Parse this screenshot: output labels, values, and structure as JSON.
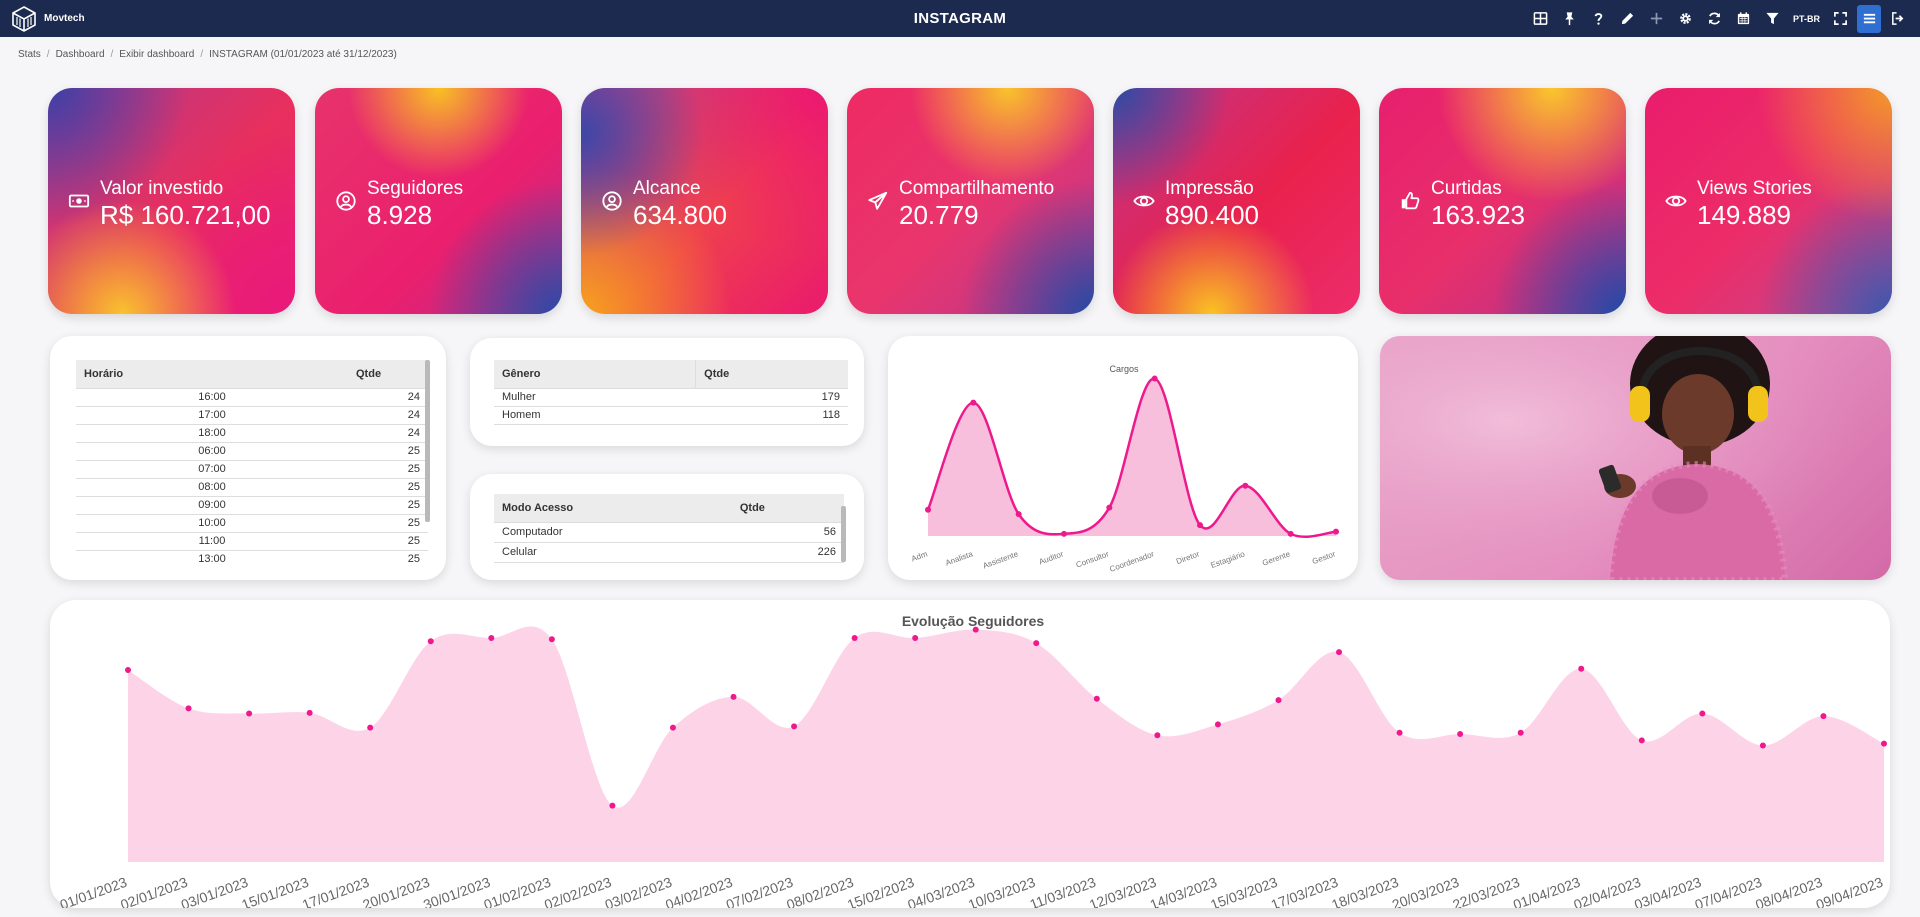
{
  "app": {
    "brand": "Movtech",
    "title": "INSTAGRAM",
    "lang": "PT-BR"
  },
  "toolbar_icons": [
    "grid-icon",
    "pin-icon",
    "help-icon",
    "pencil-icon",
    "plus-icon",
    "gear-icon",
    "refresh-icon",
    "calendar-icon",
    "filter-icon",
    "fullscreen-icon",
    "menu-icon",
    "logout-icon"
  ],
  "breadcrumb": [
    "Stats",
    "Dashboard",
    "Exibir dashboard",
    "INSTAGRAM (01/01/2023 até 31/12/2023)"
  ],
  "kpis": [
    {
      "label": "Valor investido",
      "value": "R$ 160.721,00",
      "icon": "money-icon"
    },
    {
      "label": "Seguidores",
      "value": "8.928",
      "icon": "user-circle-icon"
    },
    {
      "label": "Alcance",
      "value": "634.800",
      "icon": "user-circle-icon"
    },
    {
      "label": "Compartilhamento",
      "value": "20.779",
      "icon": "paper-plane-icon"
    },
    {
      "label": "Impressão",
      "value": "890.400",
      "icon": "eye-icon"
    },
    {
      "label": "Curtidas",
      "value": "163.923",
      "icon": "thumbs-up-icon"
    },
    {
      "label": "Views Stories",
      "value": "149.889",
      "icon": "eye-icon"
    }
  ],
  "horario_table": {
    "headers": [
      "Horário",
      "Qtde"
    ],
    "rows": [
      [
        "16:00",
        "24"
      ],
      [
        "17:00",
        "24"
      ],
      [
        "18:00",
        "24"
      ],
      [
        "06:00",
        "25"
      ],
      [
        "07:00",
        "25"
      ],
      [
        "08:00",
        "25"
      ],
      [
        "09:00",
        "25"
      ],
      [
        "10:00",
        "25"
      ],
      [
        "11:00",
        "25"
      ],
      [
        "13:00",
        "25"
      ]
    ]
  },
  "genero_table": {
    "headers": [
      "Gênero",
      "Qtde"
    ],
    "rows": [
      [
        "Mulher",
        "179"
      ],
      [
        "Homem",
        "118"
      ]
    ]
  },
  "acesso_table": {
    "headers": [
      "Modo Acesso",
      "Qtde"
    ],
    "rows": [
      [
        "Computador",
        "56"
      ],
      [
        "Celular",
        "226"
      ]
    ]
  },
  "colors": {
    "topbar": "#1b2a4e",
    "accent": "#e8198b",
    "area_fill": "#fbd3e8"
  },
  "chart_data": [
    {
      "type": "area",
      "title": "Cargos",
      "categories": [
        "Adm",
        "Analista",
        "Assistente",
        "Auditor",
        "Consultor",
        "Coordenador",
        "Diretor",
        "Estagiário",
        "Gerente",
        "Gestor"
      ],
      "values": [
        12,
        61,
        10,
        1,
        13,
        72,
        5,
        23,
        1,
        2
      ],
      "ylim": [
        0,
        75
      ],
      "grid": false,
      "legend": "none"
    },
    {
      "type": "area",
      "title": "Evolução Seguidores",
      "categories": [
        "01/01/2023",
        "02/01/2023",
        "03/01/2023",
        "15/01/2023",
        "17/01/2023",
        "20/01/2023",
        "30/01/2023",
        "01/02/2023",
        "02/02/2023",
        "03/02/2023",
        "04/02/2023",
        "07/02/2023",
        "08/02/2023",
        "15/02/2023",
        "04/03/2023",
        "10/03/2023",
        "11/03/2023",
        "12/03/2023",
        "14/03/2023",
        "15/03/2023",
        "17/03/2023",
        "18/03/2023",
        "20/03/2023",
        "22/03/2023",
        "01/04/2023",
        "02/04/2023",
        "03/04/2023",
        "07/04/2023",
        "08/04/2023",
        "09/04/2023"
      ],
      "values": [
        300,
        240,
        232,
        233,
        210,
        345,
        350,
        348,
        88,
        210,
        258,
        212,
        350,
        350,
        363,
        342,
        255,
        198,
        215,
        253,
        328,
        202,
        200,
        202,
        302,
        190,
        232,
        182,
        228,
        185
      ],
      "ylim": [
        0,
        400
      ],
      "grid": false,
      "legend": "none"
    }
  ]
}
